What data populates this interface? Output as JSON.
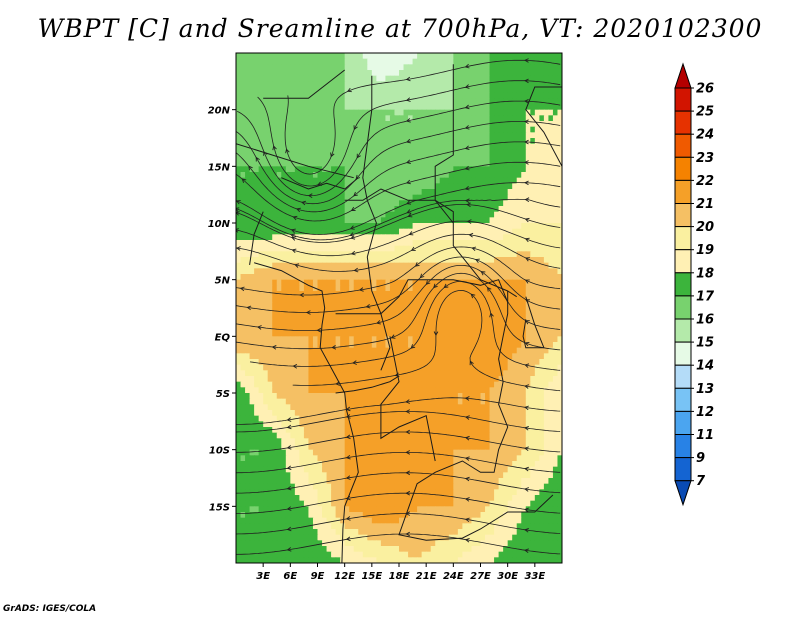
{
  "title": "WBPT [C] and Sreamline at 700hPa, VT: 2020102300",
  "credit": "GrADS: IGES/COLA",
  "map": {
    "lon_range": [
      0,
      36
    ],
    "lat_range": [
      -20,
      25
    ],
    "lat_ticks": [
      {
        "value": 20,
        "label": "20N"
      },
      {
        "value": 15,
        "label": "15N"
      },
      {
        "value": 10,
        "label": "10N"
      },
      {
        "value": 5,
        "label": "5N"
      },
      {
        "value": 0,
        "label": "EQ"
      },
      {
        "value": -5,
        "label": "5S"
      },
      {
        "value": -10,
        "label": "10S"
      },
      {
        "value": -15,
        "label": "15S"
      }
    ],
    "lon_ticks": [
      {
        "value": 3,
        "label": "3E"
      },
      {
        "value": 6,
        "label": "6E"
      },
      {
        "value": 9,
        "label": "9E"
      },
      {
        "value": 12,
        "label": "12E"
      },
      {
        "value": 15,
        "label": "15E"
      },
      {
        "value": 18,
        "label": "18E"
      },
      {
        "value": 21,
        "label": "21E"
      },
      {
        "value": 24,
        "label": "24E"
      },
      {
        "value": 27,
        "label": "27E"
      },
      {
        "value": 30,
        "label": "30E"
      },
      {
        "value": 33,
        "label": "33E"
      }
    ]
  },
  "colorbar": {
    "labels": [
      "26",
      "25",
      "24",
      "23",
      "22",
      "21",
      "20",
      "19",
      "18",
      "17",
      "16",
      "15",
      "14",
      "13",
      "12",
      "11",
      "9",
      "7"
    ],
    "colors": [
      "#b40000",
      "#d21400",
      "#e63200",
      "#f05a00",
      "#f58200",
      "#f5a028",
      "#f5c064",
      "#faf0a0",
      "#fff0b4",
      "#3cb43c",
      "#78d26e",
      "#b4eaaa",
      "#e6fae6",
      "#b4dcf8",
      "#78c3f5",
      "#4ba5f0",
      "#2882e6",
      "#1464d2",
      "#0a4bb4"
    ]
  },
  "field": {
    "legend_levels": [
      7,
      9,
      11,
      12,
      13,
      14,
      15,
      16,
      17,
      18,
      19,
      20,
      21,
      22,
      23,
      24,
      25,
      26
    ],
    "grid_lon": [
      0,
      4,
      8,
      12,
      16,
      20,
      24,
      28,
      32,
      36
    ],
    "grid_lat": [
      25,
      20,
      15,
      10,
      5,
      0,
      -5,
      -10,
      -15,
      -20
    ],
    "wbpt": [
      [
        17,
        17,
        17,
        16,
        14,
        15,
        16,
        17,
        17,
        17
      ],
      [
        17,
        16,
        16,
        16,
        16,
        16,
        16,
        17,
        18,
        18
      ],
      [
        17,
        17,
        17,
        17,
        16,
        16,
        17,
        17,
        18,
        18
      ],
      [
        17,
        17,
        17,
        17,
        17,
        18,
        18,
        18,
        19,
        19
      ],
      [
        20,
        21,
        21,
        21,
        21,
        21,
        21,
        21,
        21,
        20
      ],
      [
        21,
        21,
        21,
        21,
        21,
        21,
        22,
        22,
        21,
        20
      ],
      [
        17,
        20,
        21,
        21,
        21,
        21,
        21,
        21,
        20,
        18
      ],
      [
        17,
        17,
        20,
        21,
        22,
        22,
        21,
        21,
        20,
        18
      ],
      [
        17,
        17,
        18,
        21,
        22,
        21,
        21,
        20,
        18,
        17
      ],
      [
        17,
        17,
        17,
        18,
        19,
        20,
        19,
        18,
        17,
        17
      ]
    ]
  }
}
